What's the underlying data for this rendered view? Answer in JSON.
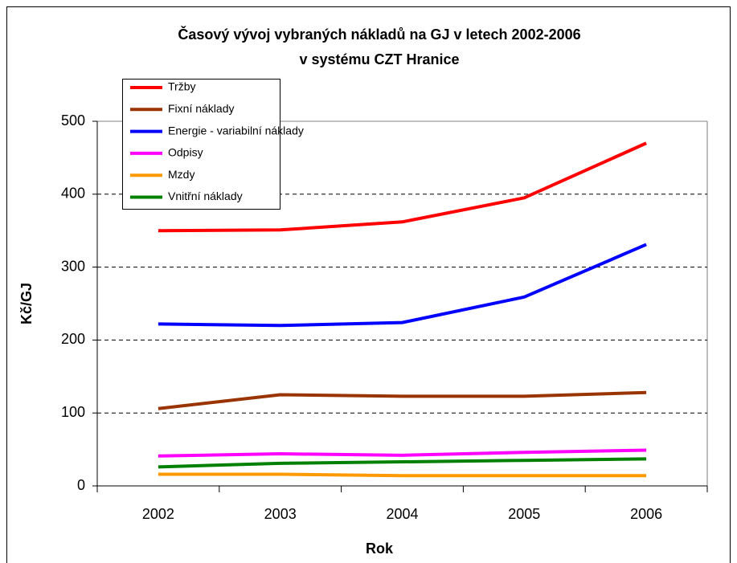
{
  "chart_data": {
    "type": "line",
    "title": [
      "Časový vývoj vybraných nákladů na GJ v letech 2002-2006",
      "v systému CZT Hranice"
    ],
    "xlabel": "Rok",
    "ylabel": "Kč/GJ",
    "categories": [
      "2002",
      "2003",
      "2004",
      "2005",
      "2006"
    ],
    "series": [
      {
        "name": "Tržby",
        "color": "#ff0000",
        "values": [
          350,
          351,
          362,
          395,
          470
        ]
      },
      {
        "name": "Fixní náklady",
        "color": "#993300",
        "values": [
          106,
          125,
          123,
          123,
          128
        ]
      },
      {
        "name": "Energie - variabilní náklady",
        "color": "#0000ff",
        "values": [
          222,
          220,
          224,
          259,
          331
        ]
      },
      {
        "name": "Odpisy",
        "color": "#ff00ff",
        "values": [
          41,
          44,
          42,
          46,
          49
        ]
      },
      {
        "name": "Mzdy",
        "color": "#ff9900",
        "values": [
          16,
          16,
          14,
          14,
          14
        ]
      },
      {
        "name": "Vnitřní náklady",
        "color": "#008000",
        "values": [
          26,
          31,
          33,
          35,
          37
        ]
      }
    ],
    "ylim": [
      0,
      500
    ],
    "yticks": [
      0,
      100,
      200,
      300,
      400,
      500
    ],
    "grid": true,
    "legend": "top-left"
  }
}
